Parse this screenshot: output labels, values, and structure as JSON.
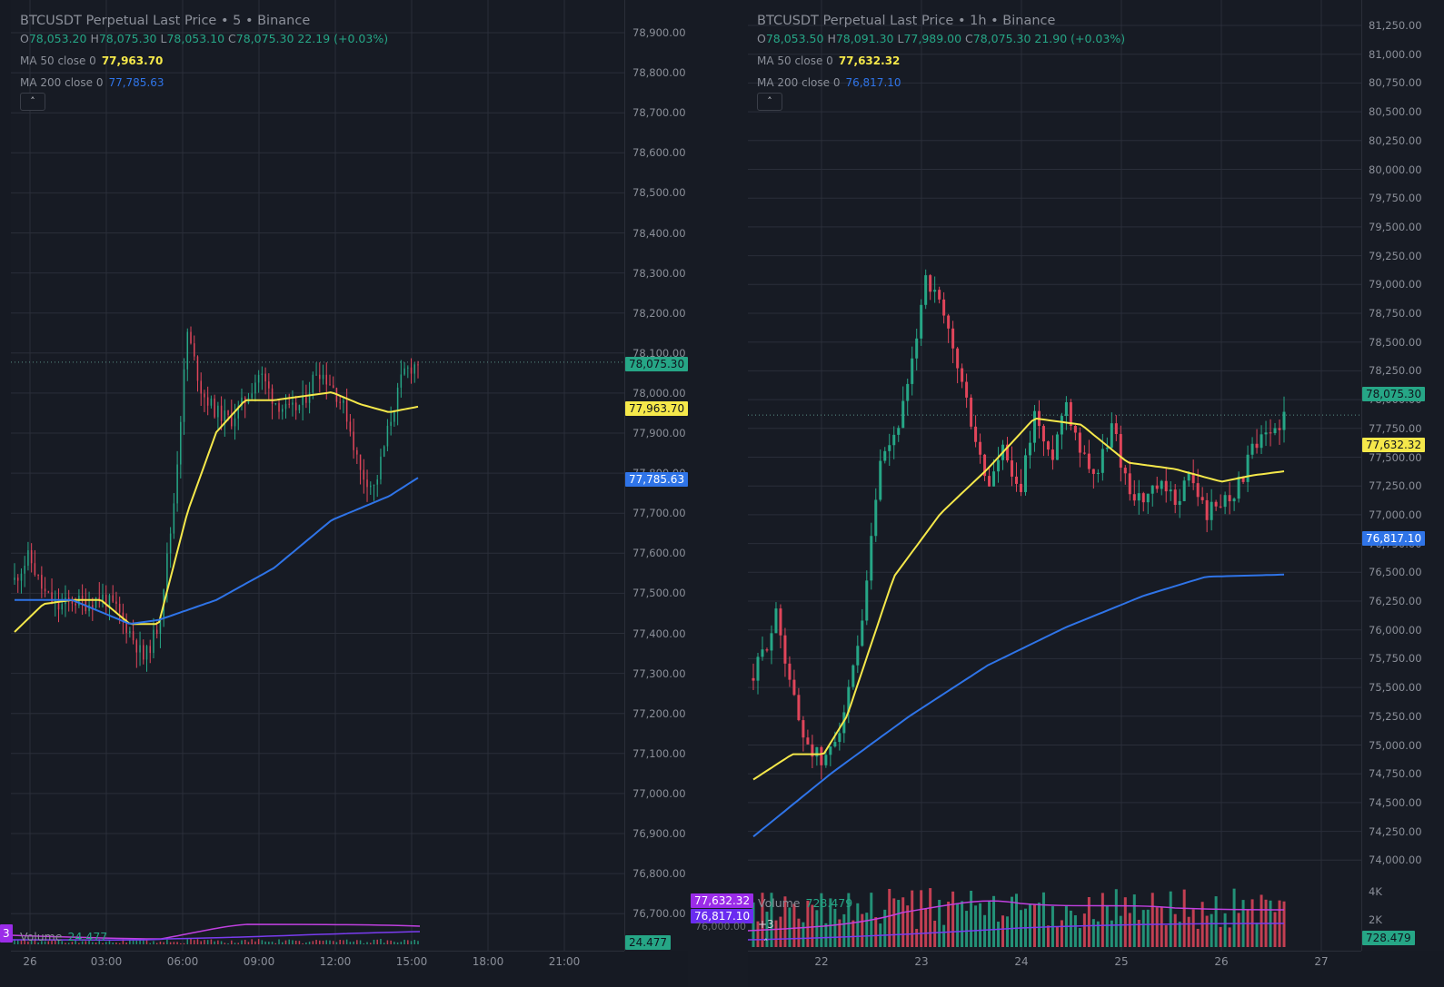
{
  "colors": {
    "background": "#171b24",
    "grid": "#2a2e39",
    "up": "#26a686",
    "down": "#e0455a",
    "ma50": "#f5e84a",
    "ma200": "#2f74e8",
    "last_price_tag": "#26a686",
    "vol_ma_fast": "#c040e0",
    "vol_ma_slow": "#7a3cf0"
  },
  "left_chart": {
    "title": "BTCUSDT Perpetual Last Price • 5 • Binance",
    "ohlc": {
      "o_label": "O",
      "o": "78,053.20",
      "h_label": "H",
      "h": "78,075.30",
      "l_label": "L",
      "l": "78,053.10",
      "c_label": "C",
      "c": "78,075.30",
      "change": "22.19 (+0.03%)"
    },
    "ma50": {
      "label": "MA 50 close 0",
      "value": "77,963.70"
    },
    "ma200": {
      "label": "MA 200 close 0",
      "value": "77,785.63"
    },
    "collapse_icon": "˄",
    "price_axis": [
      "78,900.00",
      "78,800.00",
      "78,700.00",
      "78,600.00",
      "78,500.00",
      "78,400.00",
      "78,300.00",
      "78,200.00",
      "78,100.00",
      "78,000.00",
      "77,900.00",
      "77,800.00",
      "77,700.00",
      "77,600.00",
      "77,500.00",
      "77,400.00",
      "77,300.00",
      "77,200.00",
      "77,100.00",
      "77,000.00",
      "76,900.00",
      "76,800.00",
      "76,700.00"
    ],
    "tags": {
      "last": "78,075.30",
      "ma50": "77,963.70",
      "ma200": "77,785.63",
      "volume": "24.477"
    },
    "time_axis": [
      "26",
      "03:00",
      "06:00",
      "09:00",
      "12:00",
      "15:00",
      "18:00",
      "21:00"
    ],
    "volume": {
      "label": "Volume",
      "value": "24.477"
    },
    "left_edge_tag": "3"
  },
  "right_chart": {
    "title": "BTCUSDT Perpetual Last Price • 1h • Binance",
    "ohlc": {
      "o_label": "O",
      "o": "78,053.50",
      "h_label": "H",
      "h": "78,091.30",
      "l_label": "L",
      "l": "77,989.00",
      "c_label": "C",
      "c": "78,075.30",
      "change": "21.90 (+0.03%)"
    },
    "ma50": {
      "label": "MA 50 close 0",
      "value": "77,632.32"
    },
    "ma200": {
      "label": "MA 200 close 0",
      "value": "76,817.10"
    },
    "collapse_icon": "˄",
    "price_axis": [
      "81,250.00",
      "81,000.00",
      "80,750.00",
      "80,500.00",
      "80,250.00",
      "80,000.00",
      "79,750.00",
      "79,500.00",
      "79,250.00",
      "79,000.00",
      "78,750.00",
      "78,500.00",
      "78,250.00",
      "78,000.00",
      "77,750.00",
      "77,500.00",
      "77,250.00",
      "77,000.00",
      "76,750.00",
      "76,500.00",
      "76,250.00",
      "76,000.00",
      "75,750.00",
      "75,500.00",
      "75,250.00",
      "75,000.00",
      "74,750.00",
      "74,500.00",
      "74,250.00",
      "74,000.00"
    ],
    "volume_axis": [
      "4K",
      "2K"
    ],
    "tags": {
      "last": "78,075.30",
      "ma50": "77,632.32",
      "ma200": "76,817.10",
      "volume": "728.479"
    },
    "overlay_tags": {
      "ma50": "77,632.32",
      "ma200": "76,817.10",
      "hidden_axis": "76,000.00"
    },
    "time_axis": [
      "22",
      "23",
      "24",
      "25",
      "26",
      "27"
    ],
    "volume": {
      "label": "Volume",
      "value": "728.479"
    },
    "more_indicators": "+3",
    "collapse_icon_bottom": "˄"
  },
  "chart_data": [
    {
      "type": "candlestick",
      "title": "BTCUSDT Perpetual Last Price • 5 • Binance",
      "interval": "5m",
      "ylim": [
        76650,
        78950
      ],
      "x_ticks": [
        "26",
        "03:00",
        "06:00",
        "09:00",
        "12:00",
        "15:00",
        "18:00",
        "21:00"
      ],
      "last_price": 78075.3,
      "ma50_last": 77963.7,
      "ma200_last": 77785.63,
      "volume_last": 24.477,
      "approx_close_path": [
        [
          0,
          77530
        ],
        [
          1,
          77590
        ],
        [
          2,
          77500
        ],
        [
          3,
          77460
        ],
        [
          4,
          77480
        ],
        [
          5,
          77470
        ],
        [
          6,
          77490
        ],
        [
          7,
          77460
        ],
        [
          8,
          77400
        ],
        [
          9,
          77330
        ],
        [
          10,
          77420
        ],
        [
          11,
          77700
        ],
        [
          12,
          78150
        ],
        [
          13,
          78000
        ],
        [
          14,
          77950
        ],
        [
          15,
          77930
        ],
        [
          16,
          77980
        ],
        [
          17,
          78050
        ],
        [
          18,
          77980
        ],
        [
          19,
          77950
        ],
        [
          20,
          77970
        ],
        [
          21,
          78060
        ],
        [
          22,
          78020
        ],
        [
          23,
          77950
        ],
        [
          24,
          77800
        ],
        [
          25,
          77760
        ],
        [
          26,
          77920
        ],
        [
          27,
          78050
        ],
        [
          28,
          78075
        ]
      ],
      "series": [
        {
          "name": "MA 50",
          "points": [
            [
              0,
              77400
            ],
            [
              2,
              77470
            ],
            [
              4,
              77480
            ],
            [
              6,
              77480
            ],
            [
              8,
              77420
            ],
            [
              10,
              77420
            ],
            [
              12,
              77700
            ],
            [
              14,
              77900
            ],
            [
              16,
              77980
            ],
            [
              18,
              77980
            ],
            [
              20,
              77990
            ],
            [
              22,
              78000
            ],
            [
              24,
              77970
            ],
            [
              26,
              77950
            ],
            [
              28,
              77964
            ]
          ]
        },
        {
          "name": "MA 200",
          "points": [
            [
              0,
              77480
            ],
            [
              4,
              77480
            ],
            [
              8,
              77420
            ],
            [
              10,
              77430
            ],
            [
              14,
              77480
            ],
            [
              18,
              77560
            ],
            [
              22,
              77680
            ],
            [
              26,
              77740
            ],
            [
              28,
              77786
            ]
          ]
        }
      ]
    },
    {
      "type": "candlestick",
      "title": "BTCUSDT Perpetual Last Price • 1h • Binance",
      "interval": "1h",
      "ylim": [
        73900,
        81350
      ],
      "x_ticks": [
        "22",
        "23",
        "24",
        "25",
        "26",
        "27"
      ],
      "last_price": 78075.3,
      "ma50_last": 77632.32,
      "ma200_last": 76817.1,
      "volume_last": 728.479,
      "approx_close_path": [
        [
          0,
          76000
        ],
        [
          3,
          76500
        ],
        [
          6,
          75600
        ],
        [
          9,
          75300
        ],
        [
          12,
          75800
        ],
        [
          14,
          76400
        ],
        [
          16,
          77600
        ],
        [
          18,
          77900
        ],
        [
          20,
          78300
        ],
        [
          22,
          79200
        ],
        [
          24,
          78900
        ],
        [
          26,
          78500
        ],
        [
          28,
          78000
        ],
        [
          30,
          77500
        ],
        [
          32,
          77800
        ],
        [
          34,
          77400
        ],
        [
          36,
          78100
        ],
        [
          38,
          77700
        ],
        [
          40,
          78200
        ],
        [
          42,
          77800
        ],
        [
          44,
          77600
        ],
        [
          46,
          78000
        ],
        [
          48,
          77500
        ],
        [
          50,
          77400
        ],
        [
          52,
          77500
        ],
        [
          54,
          77400
        ],
        [
          56,
          77600
        ],
        [
          58,
          77300
        ],
        [
          60,
          77400
        ],
        [
          62,
          77500
        ],
        [
          64,
          77800
        ],
        [
          66,
          77900
        ],
        [
          68,
          78075
        ]
      ],
      "series": [
        {
          "name": "MA 50",
          "points": [
            [
              0,
              75200
            ],
            [
              5,
              75400
            ],
            [
              9,
              75400
            ],
            [
              12,
              75700
            ],
            [
              18,
              76800
            ],
            [
              24,
              77300
            ],
            [
              30,
              77650
            ],
            [
              36,
              78050
            ],
            [
              42,
              78000
            ],
            [
              48,
              77700
            ],
            [
              54,
              77650
            ],
            [
              60,
              77550
            ],
            [
              64,
              77600
            ],
            [
              68,
              77632
            ]
          ]
        },
        {
          "name": "MA 200",
          "points": [
            [
              0,
              74750
            ],
            [
              10,
              75250
            ],
            [
              20,
              75700
            ],
            [
              30,
              76100
            ],
            [
              40,
              76400
            ],
            [
              50,
              76650
            ],
            [
              58,
              76800
            ],
            [
              68,
              76817
            ]
          ]
        }
      ]
    }
  ]
}
